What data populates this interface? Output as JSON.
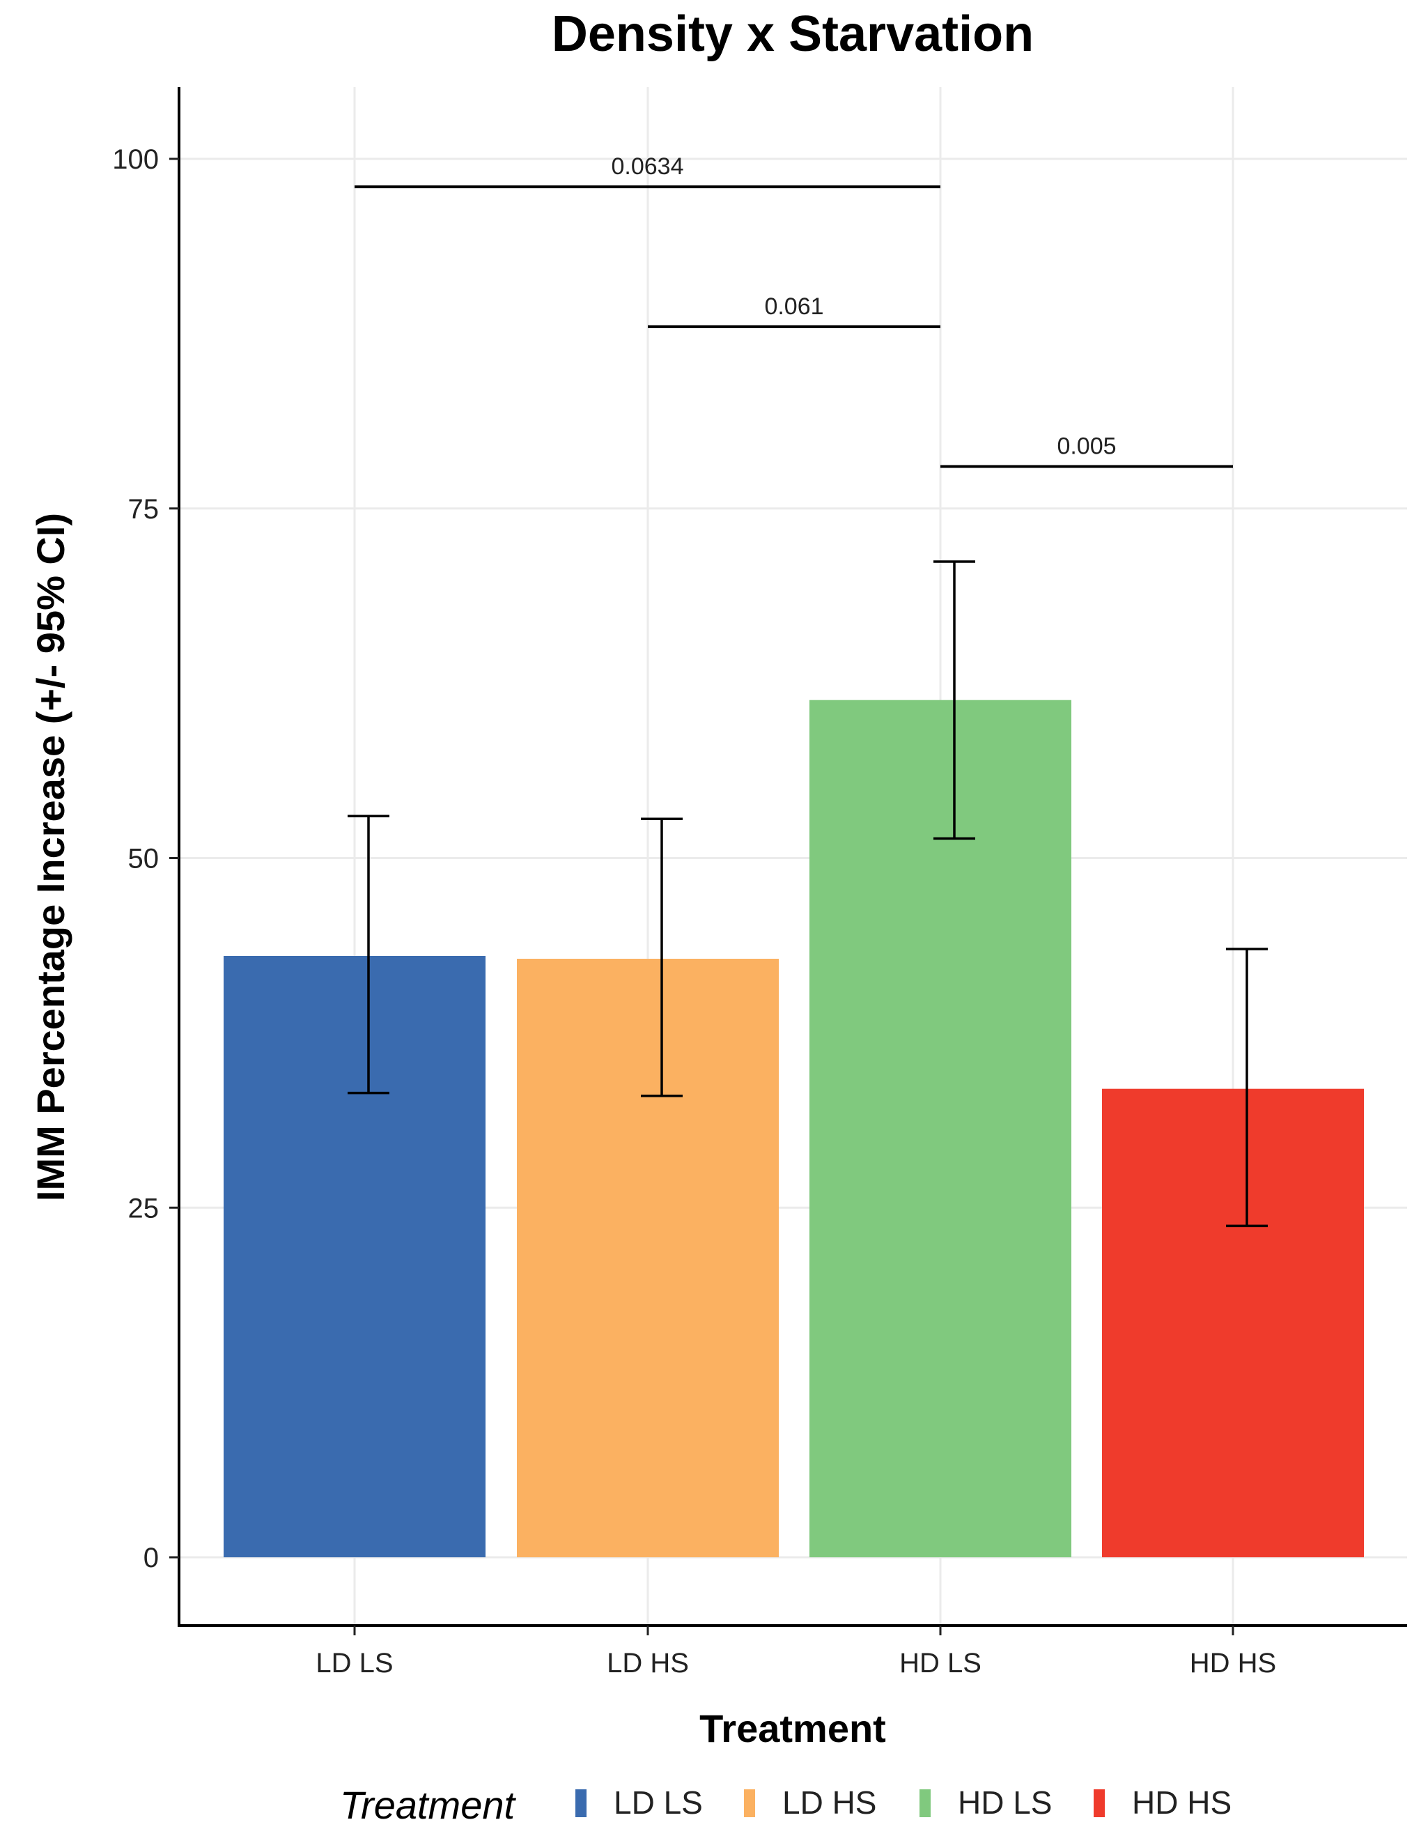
{
  "chart_data": {
    "type": "bar",
    "title": "Density x Starvation",
    "xlabel": "Treatment",
    "ylabel": "IMM Percentage Increase (+/- 95% CI)",
    "ylim": [
      -5,
      105
    ],
    "yticks": [
      0,
      25,
      50,
      75,
      100
    ],
    "grid": true,
    "categories": [
      "LD LS",
      "LD HS",
      "HD LS",
      "HD HS"
    ],
    "values": [
      43,
      42.8,
      61.3,
      33.5
    ],
    "ci_lower": [
      33.2,
      33,
      51.4,
      23.7
    ],
    "ci_upper": [
      53,
      52.8,
      71.2,
      43.5
    ],
    "colors": [
      "#3a6baf",
      "#fbb161",
      "#80c97e",
      "#ef3b2c"
    ],
    "comparisons": [
      {
        "from": "LD LS",
        "to": "HD LS",
        "y": 98,
        "label": "0.0634"
      },
      {
        "from": "LD HS",
        "to": "HD LS",
        "y": 88,
        "label": "0.061"
      },
      {
        "from": "HD LS",
        "to": "HD HS",
        "y": 78,
        "label": "0.005"
      }
    ],
    "legend": {
      "title": "Treatment",
      "position": "bottom",
      "entries": [
        "LD LS",
        "LD HS",
        "HD LS",
        "HD HS"
      ]
    }
  }
}
